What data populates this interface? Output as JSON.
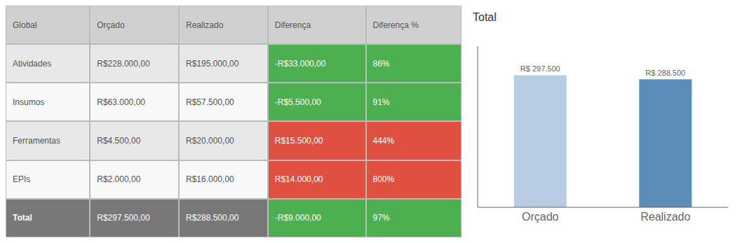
{
  "chart_data": [
    {
      "type": "table",
      "xlabel": "Global",
      "categories": [
        "Atividades",
        "Insumos",
        "Ferramentas",
        "EPIs",
        "Total"
      ],
      "series": [
        {
          "name": "Orçado",
          "values": [
            228000,
            63000,
            4500,
            2000,
            297500
          ],
          "value_labels": [
            "R$228.000,00",
            "R$63.000,00",
            "R$4.500,00",
            "R$2.000,00",
            "R$297.500,00"
          ]
        },
        {
          "name": "Realizado",
          "values": [
            195000,
            57500,
            20000,
            16000,
            288500
          ],
          "value_labels": [
            "R$195.000,00",
            "R$57.500,00",
            "R$20.000,00",
            "R$16.000,00",
            "R$288.500,00"
          ]
        },
        {
          "name": "Diferença",
          "values": [
            -33000,
            -5500,
            15500,
            14000,
            -9000
          ],
          "value_labels": [
            "-R$33.000,00",
            "-R$5.500,00",
            "R$15.500,00",
            "R$14.000,00",
            "-R$9.000,00"
          ],
          "colors": [
            "#4caf50",
            "#4caf50",
            "#e05040",
            "#e05040",
            "#4caf50"
          ]
        },
        {
          "name": "Diferença %",
          "values": [
            86,
            91,
            444,
            800,
            97
          ],
          "value_labels": [
            "86%",
            "91%",
            "444%",
            "800%",
            "97%"
          ],
          "colors": [
            "#4caf50",
            "#4caf50",
            "#e05040",
            "#e05040",
            "#4caf50"
          ]
        }
      ]
    },
    {
      "type": "bar",
      "title": "Total",
      "categories": [
        "Orçado",
        "Realizado"
      ],
      "values": [
        297500,
        288500
      ],
      "value_labels": [
        "R$ 297.500",
        "R$ 288.500"
      ],
      "colors": [
        "#b8cce4",
        "#5b8db8"
      ],
      "ylim": [
        0,
        362950
      ],
      "data_labels": true,
      "tick_labels": "x",
      "grid": false
    }
  ]
}
